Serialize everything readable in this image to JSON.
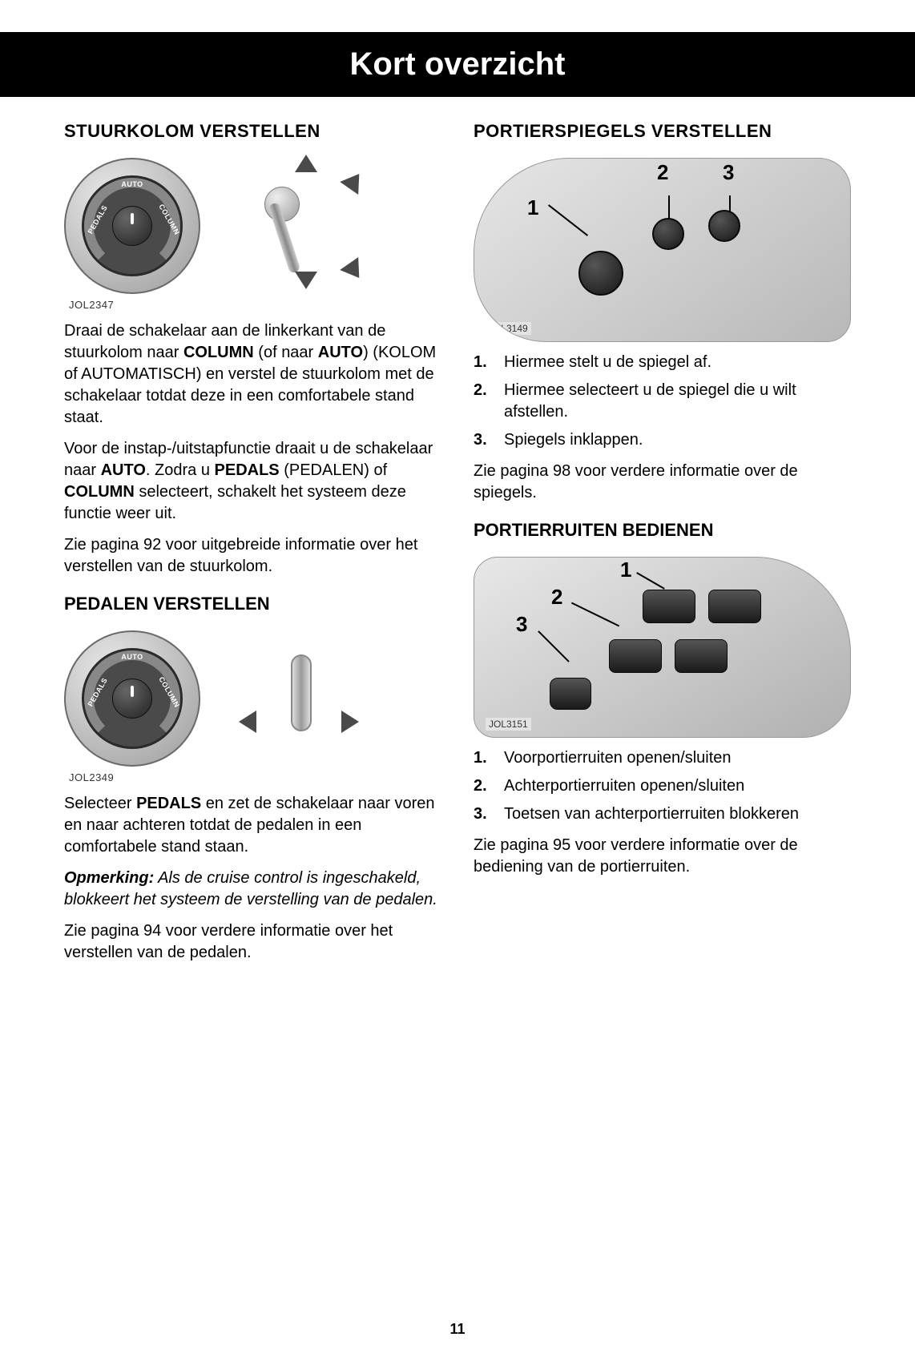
{
  "page": {
    "title": "Kort overzicht",
    "number": "11"
  },
  "left": {
    "heading1": "STUURKOLOM VERSTELLEN",
    "fig1_caption": "JOL2347",
    "dial_labels": {
      "auto": "AUTO",
      "pedals": "PEDALS",
      "column": "COLUMN"
    },
    "para1_pre": "Draai de schakelaar aan de linkerkant van de stuurkolom naar ",
    "para1_b1": "COLUMN",
    "para1_mid1": " (of naar ",
    "para1_b2": "AUTO",
    "para1_post": ") (KOLOM of AUTOMATISCH) en verstel de stuurkolom met de schakelaar totdat deze in een comfortabele stand staat.",
    "para2_pre": "Voor de instap-/uitstapfunctie draait u de schakelaar naar ",
    "para2_b1": "AUTO",
    "para2_mid1": ". Zodra u ",
    "para2_b2": "PEDALS",
    "para2_mid2": " (PEDALEN) of ",
    "para2_b3": "COLUMN",
    "para2_post": " selecteert, schakelt het systeem deze functie weer uit.",
    "para3": "Zie pagina 92 voor uitgebreide informatie over het verstellen van de stuurkolom.",
    "heading2": "PEDALEN VERSTELLEN",
    "fig2_caption": "JOL2349",
    "para4_pre": "Selecteer ",
    "para4_b1": "PEDALS",
    "para4_post": " en zet de schakelaar naar voren en naar achteren totdat de pedalen in een comfortabele stand staan.",
    "note_label": "Opmerking:",
    "note_text": " Als de cruise control is ingeschakeld, blokkeert het systeem de verstelling van de pedalen.",
    "para5": "Zie pagina 94 voor verdere informatie over het verstellen van de pedalen."
  },
  "right": {
    "heading1": "PORTIERSPIEGELS VERSTELLEN",
    "fig1_caption": "JOL3149",
    "callouts1": {
      "c1": "1",
      "c2": "2",
      "c3": "3"
    },
    "list1": [
      "Hiermee stelt u de spiegel af.",
      "Hiermee selecteert u de spiegel die u wilt afstellen.",
      "Spiegels inklappen."
    ],
    "para1": "Zie pagina 98 voor verdere informatie over de spiegels.",
    "heading2": "PORTIERRUITEN BEDIENEN",
    "fig2_caption": "JOL3151",
    "callouts2": {
      "c1": "1",
      "c2": "2",
      "c3": "3"
    },
    "list2": [
      "Voorportierruiten openen/sluiten",
      "Achterportierruiten openen/sluiten",
      "Toetsen van achterportierruiten blokkeren"
    ],
    "para2": "Zie pagina 95 voor verdere informatie over de bediening van de portierruiten."
  }
}
